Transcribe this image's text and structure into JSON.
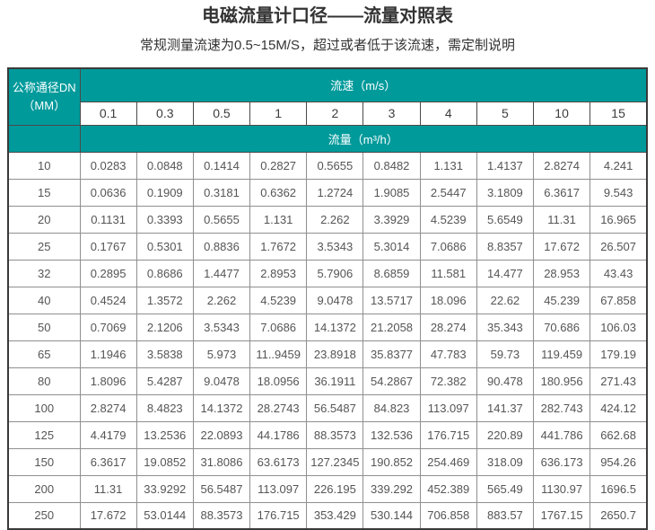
{
  "page": {
    "title": "电磁流量计口径——流量对照表",
    "subtitle": "常规测量流速为0.5~15M/S，超过或者低于该流速，需定制说明"
  },
  "colors": {
    "header_bg": "#009a9b",
    "header_text": "#ffffff",
    "border_dark": "#4a4a4a",
    "border_light": "#8f8f8f",
    "text_main": "#333333",
    "text_data": "#555555"
  },
  "table": {
    "dn_header": {
      "line1": "公称通径DN",
      "line2": "（MM）"
    },
    "velocity_header": "流速（m/s）",
    "flow_header": "流量（m³/h）",
    "velocities": [
      "0.1",
      "0.3",
      "0.5",
      "1",
      "2",
      "3",
      "4",
      "5",
      "10",
      "15"
    ],
    "rows": [
      {
        "dn": "10",
        "values": [
          "0.0283",
          "0.0848",
          "0.1414",
          "0.2827",
          "0.5655",
          "0.8482",
          "1.131",
          "1.4137",
          "2.8274",
          "4.241"
        ]
      },
      {
        "dn": "15",
        "values": [
          "0.0636",
          "0.1909",
          "0.3181",
          "0.6362",
          "1.2724",
          "1.9085",
          "2.5447",
          "3.1809",
          "6.3617",
          "9.543"
        ]
      },
      {
        "dn": "20",
        "values": [
          "0.1131",
          "0.3393",
          "0.5655",
          "1.131",
          "2.262",
          "3.3929",
          "4.5239",
          "5.6549",
          "11.31",
          "16.965"
        ]
      },
      {
        "dn": "25",
        "values": [
          "0.1767",
          "0.5301",
          "0.8836",
          "1.7672",
          "3.5343",
          "5.3014",
          "7.0686",
          "8.8357",
          "17.672",
          "26.507"
        ]
      },
      {
        "dn": "32",
        "values": [
          "0.2895",
          "0.8686",
          "1.4477",
          "2.8953",
          "5.7906",
          "8.6859",
          "11.581",
          "14.477",
          "28.953",
          "43.43"
        ]
      },
      {
        "dn": "40",
        "values": [
          "0.4524",
          "1.3572",
          "2.262",
          "4.5239",
          "9.0478",
          "13.5717",
          "18.096",
          "22.62",
          "45.239",
          "67.858"
        ]
      },
      {
        "dn": "50",
        "values": [
          "0.7069",
          "2.1206",
          "3.5343",
          "7.0686",
          "14.1372",
          "21.2058",
          "28.274",
          "35.343",
          "70.686",
          "106.03"
        ]
      },
      {
        "dn": "65",
        "values": [
          "1.1946",
          "3.5838",
          "5.973",
          "11..9459",
          "23.8918",
          "35.8377",
          "47.783",
          "59.73",
          "119.459",
          "179.19"
        ]
      },
      {
        "dn": "80",
        "values": [
          "1.8096",
          "5.4287",
          "9.0478",
          "18.0956",
          "36.1911",
          "54.2867",
          "72.382",
          "90.478",
          "180.956",
          "271.43"
        ]
      },
      {
        "dn": "100",
        "values": [
          "2.8274",
          "8.4823",
          "14.1372",
          "28.2743",
          "56.5487",
          "84.823",
          "113.097",
          "141.37",
          "282.743",
          "424.12"
        ]
      },
      {
        "dn": "125",
        "values": [
          "4.4179",
          "13.2536",
          "22.0893",
          "44.1786",
          "88.3573",
          "132.536",
          "176.715",
          "220.89",
          "441.786",
          "662.68"
        ]
      },
      {
        "dn": "150",
        "values": [
          "6.3617",
          "19.0852",
          "31.8086",
          "63.6173",
          "127.2345",
          "190.852",
          "254.469",
          "318.09",
          "636.173",
          "954.26"
        ]
      },
      {
        "dn": "200",
        "values": [
          "11.31",
          "33.9292",
          "56.5487",
          "113.097",
          "226.195",
          "339.292",
          "452.389",
          "565.49",
          "1130.97",
          "1696.5"
        ]
      },
      {
        "dn": "250",
        "values": [
          "17.672",
          "53.0144",
          "88.3573",
          "176.715",
          "353.429",
          "530.144",
          "706.858",
          "883.57",
          "1767.15",
          "2650.7"
        ]
      }
    ]
  }
}
